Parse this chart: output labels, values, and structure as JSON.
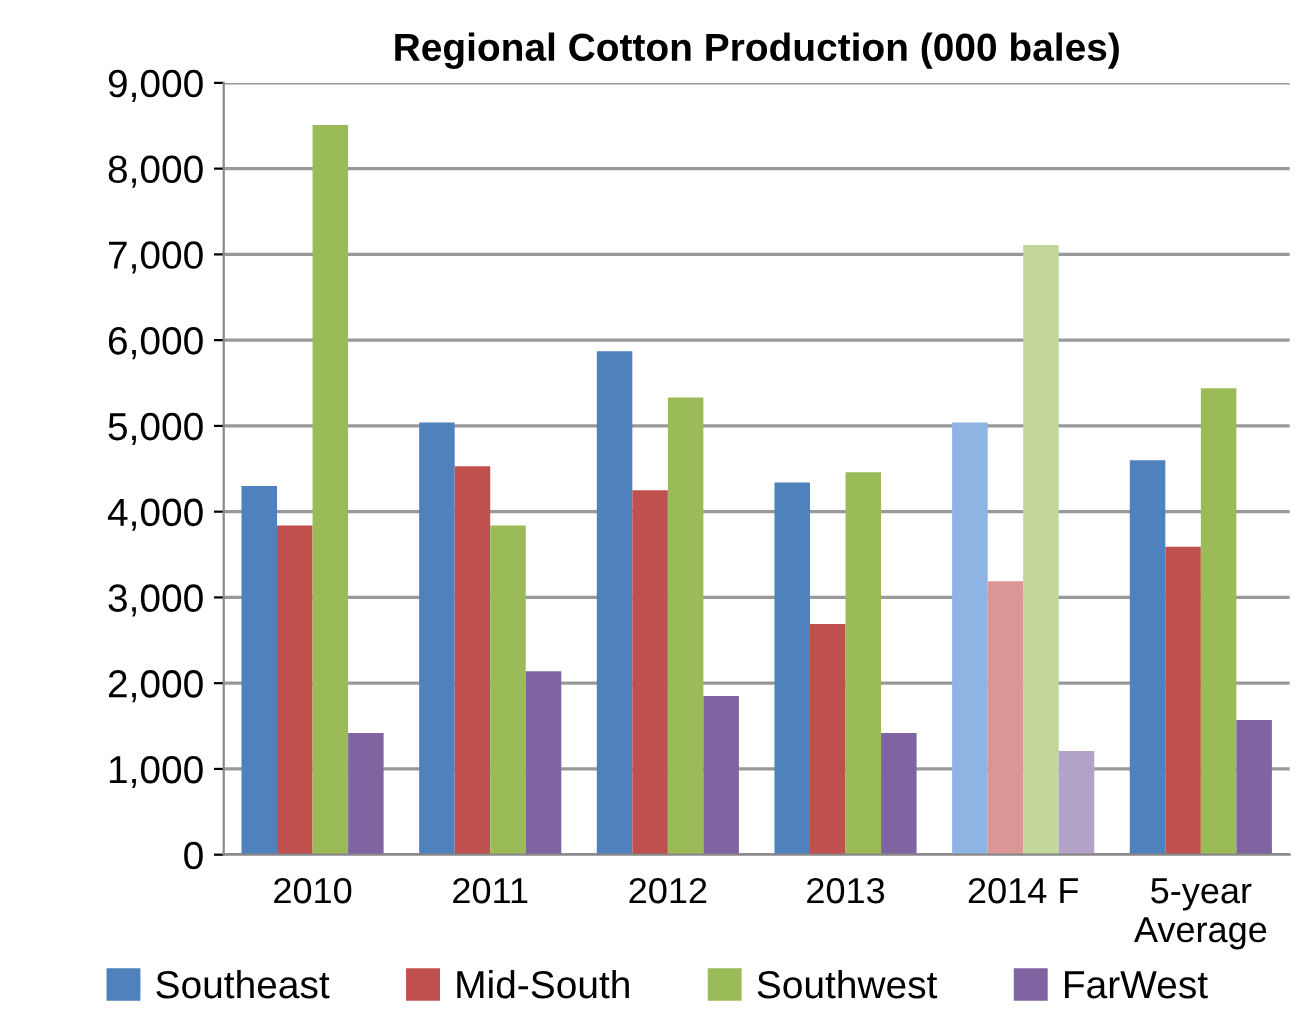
{
  "chart_data": {
    "type": "bar",
    "title": "Regional Cotton Production (000 bales)",
    "categories": [
      "2010",
      "2011",
      "2012",
      "2013",
      "2014 F",
      "5-year\nAverage"
    ],
    "series": [
      {
        "name": "Southeast",
        "color": "#4f81bd",
        "colors": [
          "#4f81bd",
          "#4f81bd",
          "#4f81bd",
          "#4f81bd",
          "#8eb4e3",
          "#4f81bd"
        ],
        "values": [
          4300,
          5040,
          5870,
          4340,
          5040,
          4600
        ]
      },
      {
        "name": "Mid-South",
        "color": "#c0504d",
        "colors": [
          "#c0504d",
          "#c0504d",
          "#c0504d",
          "#c0504d",
          "#d99694",
          "#c0504d"
        ],
        "values": [
          3840,
          4530,
          4250,
          2690,
          3190,
          3590
        ]
      },
      {
        "name": "Southwest",
        "color": "#9bbb59",
        "colors": [
          "#9bbb59",
          "#9bbb59",
          "#9bbb59",
          "#9bbb59",
          "#c3d69b",
          "#9bbb59"
        ],
        "values": [
          8510,
          3840,
          5330,
          4460,
          7110,
          5440
        ]
      },
      {
        "name": "FarWest",
        "color": "#8064a2",
        "colors": [
          "#8064a2",
          "#8064a2",
          "#8064a2",
          "#8064a2",
          "#b3a2c7",
          "#8064a2"
        ],
        "values": [
          1420,
          2140,
          1850,
          1420,
          1210,
          1570
        ]
      }
    ],
    "ylim": [
      0,
      9000
    ],
    "yticks": [
      {
        "value": 0,
        "label": "0"
      },
      {
        "value": 1000,
        "label": "1,000"
      },
      {
        "value": 2000,
        "label": "2,000"
      },
      {
        "value": 3000,
        "label": "3,000"
      },
      {
        "value": 4000,
        "label": "4,000"
      },
      {
        "value": 5000,
        "label": "5,000"
      },
      {
        "value": 6000,
        "label": "6,000"
      },
      {
        "value": 7000,
        "label": "7,000"
      },
      {
        "value": 8000,
        "label": "8,000"
      },
      {
        "value": 9000,
        "label": "9,000"
      }
    ],
    "grid": "y",
    "legend": "bottom"
  }
}
